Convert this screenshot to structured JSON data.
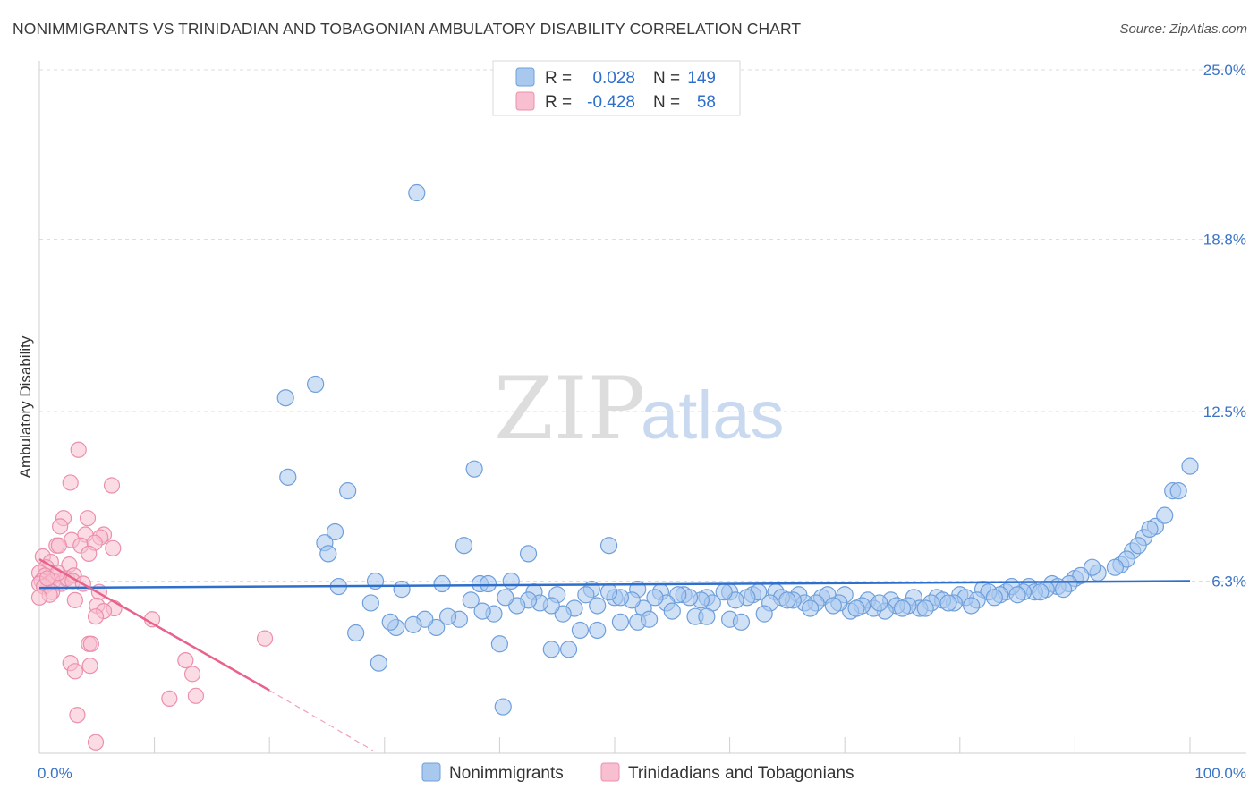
{
  "header": {
    "title": "NONIMMIGRANTS VS TRINIDADIAN AND TOBAGONIAN AMBULATORY DISABILITY CORRELATION CHART",
    "source": "Source: ZipAtlas.com"
  },
  "watermark": {
    "part1": "ZIP",
    "part2": "atlas"
  },
  "colors": {
    "blue_fill": "#a9c8ee",
    "blue_stroke": "#6e9fdc",
    "blue_line": "#2f6fcc",
    "pink_fill": "#f7bfd0",
    "pink_stroke": "#ec8fac",
    "pink_line": "#e8628b",
    "tick_text": "#3b74c6",
    "grid": "#dedede"
  },
  "legend_top": {
    "rows": [
      {
        "r_label": "R =",
        "r_value": "0.028",
        "n_label": "N =",
        "n_value": "149",
        "color": "blue"
      },
      {
        "r_label": "R =",
        "r_value": "-0.428",
        "n_label": "N =",
        "n_value": "58",
        "color": "pink"
      }
    ]
  },
  "legend_bottom": {
    "items": [
      {
        "label": "Nonimmigrants",
        "color": "blue"
      },
      {
        "label": "Trinidadians and Tobagonians",
        "color": "pink"
      }
    ]
  },
  "chart_data": {
    "type": "scatter",
    "title": "NONIMMIGRANTS VS TRINIDADIAN AND TOBAGONIAN AMBULATORY DISABILITY CORRELATION CHART",
    "xlabel": "",
    "ylabel": "Ambulatory Disability",
    "xlim": [
      0,
      100
    ],
    "ylim": [
      0,
      25
    ],
    "x_ticks": [
      0,
      10,
      20,
      30,
      40,
      50,
      60,
      70,
      80,
      90,
      100
    ],
    "x_tick_labels": {
      "0": "0.0%",
      "100": "100.0%"
    },
    "y_ticks": [
      6.3,
      12.5,
      18.8,
      25.0
    ],
    "y_tick_labels": [
      "6.3%",
      "12.5%",
      "18.8%",
      "25.0%"
    ],
    "grid": true,
    "legend_position": "top-center",
    "series": [
      {
        "name": "Nonimmigrants",
        "color": "blue",
        "trend": {
          "x": [
            0,
            100
          ],
          "y": [
            6.05,
            6.3
          ]
        },
        "points": [
          [
            32.8,
            20.5
          ],
          [
            21.4,
            13.0
          ],
          [
            24.0,
            13.5
          ],
          [
            21.6,
            10.1
          ],
          [
            37.8,
            10.4
          ],
          [
            26.8,
            9.6
          ],
          [
            25.7,
            8.1
          ],
          [
            24.8,
            7.7
          ],
          [
            25.1,
            7.3
          ],
          [
            36.9,
            7.6
          ],
          [
            42.5,
            7.3
          ],
          [
            49.5,
            7.6
          ],
          [
            26.0,
            6.1
          ],
          [
            29.2,
            6.3
          ],
          [
            31.5,
            6.0
          ],
          [
            35.0,
            6.2
          ],
          [
            38.3,
            6.2
          ],
          [
            39.0,
            6.2
          ],
          [
            41.0,
            6.3
          ],
          [
            43.0,
            5.9
          ],
          [
            45.0,
            5.8
          ],
          [
            48.0,
            6.0
          ],
          [
            50.0,
            5.7
          ],
          [
            52.0,
            6.0
          ],
          [
            54.0,
            5.9
          ],
          [
            56.0,
            5.8
          ],
          [
            58.0,
            5.7
          ],
          [
            60.0,
            5.9
          ],
          [
            62.0,
            5.8
          ],
          [
            64.0,
            5.9
          ],
          [
            66.0,
            5.8
          ],
          [
            68.0,
            5.7
          ],
          [
            70.0,
            5.8
          ],
          [
            72.0,
            5.6
          ],
          [
            74.0,
            5.6
          ],
          [
            76.0,
            5.7
          ],
          [
            78.0,
            5.7
          ],
          [
            80.0,
            5.8
          ],
          [
            82.0,
            6.0
          ],
          [
            84.0,
            5.9
          ],
          [
            86.0,
            6.1
          ],
          [
            88.0,
            6.2
          ],
          [
            90.0,
            6.4
          ],
          [
            92.0,
            6.6
          ],
          [
            94.0,
            6.9
          ],
          [
            95.0,
            7.4
          ],
          [
            96.0,
            7.9
          ],
          [
            97.0,
            8.3
          ],
          [
            98.5,
            9.6
          ],
          [
            100.0,
            10.5
          ],
          [
            99.0,
            9.6
          ],
          [
            97.8,
            8.7
          ],
          [
            96.5,
            8.2
          ],
          [
            95.5,
            7.6
          ],
          [
            94.5,
            7.1
          ],
          [
            93.5,
            6.8
          ],
          [
            91.5,
            6.8
          ],
          [
            90.5,
            6.5
          ],
          [
            89.5,
            6.2
          ],
          [
            88.5,
            6.1
          ],
          [
            87.5,
            6.0
          ],
          [
            86.5,
            5.9
          ],
          [
            85.5,
            5.9
          ],
          [
            84.5,
            6.1
          ],
          [
            83.5,
            5.8
          ],
          [
            82.5,
            5.9
          ],
          [
            81.5,
            5.6
          ],
          [
            80.5,
            5.7
          ],
          [
            79.5,
            5.5
          ],
          [
            78.5,
            5.6
          ],
          [
            77.5,
            5.5
          ],
          [
            76.5,
            5.3
          ],
          [
            75.5,
            5.4
          ],
          [
            74.5,
            5.4
          ],
          [
            73.5,
            5.2
          ],
          [
            72.5,
            5.3
          ],
          [
            71.5,
            5.4
          ],
          [
            70.5,
            5.2
          ],
          [
            69.5,
            5.5
          ],
          [
            68.5,
            5.8
          ],
          [
            67.5,
            5.5
          ],
          [
            66.5,
            5.5
          ],
          [
            65.5,
            5.6
          ],
          [
            64.5,
            5.7
          ],
          [
            63.5,
            5.5
          ],
          [
            62.5,
            5.9
          ],
          [
            61.5,
            5.7
          ],
          [
            60.5,
            5.6
          ],
          [
            59.5,
            5.9
          ],
          [
            58.5,
            5.5
          ],
          [
            57.5,
            5.6
          ],
          [
            56.5,
            5.7
          ],
          [
            55.5,
            5.8
          ],
          [
            54.5,
            5.5
          ],
          [
            53.5,
            5.7
          ],
          [
            52.5,
            5.3
          ],
          [
            51.5,
            5.6
          ],
          [
            50.5,
            5.7
          ],
          [
            49.5,
            5.9
          ],
          [
            48.5,
            5.4
          ],
          [
            47.5,
            5.8
          ],
          [
            46.5,
            5.3
          ],
          [
            45.5,
            5.1
          ],
          [
            44.5,
            5.4
          ],
          [
            43.5,
            5.5
          ],
          [
            42.5,
            5.6
          ],
          [
            41.5,
            5.4
          ],
          [
            40.5,
            5.7
          ],
          [
            39.5,
            5.1
          ],
          [
            38.5,
            5.2
          ],
          [
            37.5,
            5.6
          ],
          [
            36.5,
            4.9
          ],
          [
            35.5,
            5.0
          ],
          [
            34.5,
            4.6
          ],
          [
            33.5,
            4.9
          ],
          [
            32.5,
            4.7
          ],
          [
            31.0,
            4.6
          ],
          [
            30.5,
            4.8
          ],
          [
            28.8,
            5.5
          ],
          [
            27.5,
            4.4
          ],
          [
            29.5,
            3.3
          ],
          [
            40.3,
            1.7
          ],
          [
            40.0,
            4.0
          ],
          [
            44.5,
            3.8
          ],
          [
            46.0,
            3.8
          ],
          [
            47.0,
            4.5
          ],
          [
            48.5,
            4.5
          ],
          [
            50.5,
            4.8
          ],
          [
            52.0,
            4.8
          ],
          [
            53.0,
            4.9
          ],
          [
            55.0,
            5.2
          ],
          [
            57.0,
            5.0
          ],
          [
            58.0,
            5.0
          ],
          [
            60.0,
            4.9
          ],
          [
            61.0,
            4.8
          ],
          [
            63.0,
            5.1
          ],
          [
            65.0,
            5.6
          ],
          [
            67.0,
            5.3
          ],
          [
            69.0,
            5.4
          ],
          [
            71.0,
            5.3
          ],
          [
            73.0,
            5.5
          ],
          [
            75.0,
            5.3
          ],
          [
            77.0,
            5.3
          ],
          [
            79.0,
            5.5
          ],
          [
            81.0,
            5.4
          ],
          [
            83.0,
            5.7
          ],
          [
            85.0,
            5.8
          ],
          [
            87.0,
            5.9
          ],
          [
            89.0,
            6.0
          ]
        ]
      },
      {
        "name": "Trinidadians and Tobagonians",
        "color": "pink",
        "trend": {
          "x": [
            0,
            20
          ],
          "y": [
            7.1,
            2.3
          ]
        },
        "trend_dashed": {
          "x": [
            20,
            29
          ],
          "y": [
            2.3,
            0.1
          ]
        },
        "points": [
          [
            3.4,
            11.1
          ],
          [
            2.7,
            9.9
          ],
          [
            6.3,
            9.8
          ],
          [
            2.1,
            8.6
          ],
          [
            4.2,
            8.6
          ],
          [
            1.8,
            8.3
          ],
          [
            5.6,
            8.0
          ],
          [
            5.3,
            7.9
          ],
          [
            2.8,
            7.8
          ],
          [
            4.0,
            8.0
          ],
          [
            1.5,
            7.6
          ],
          [
            3.6,
            7.6
          ],
          [
            4.8,
            7.7
          ],
          [
            6.4,
            7.5
          ],
          [
            1.7,
            7.6
          ],
          [
            0.3,
            7.2
          ],
          [
            1.0,
            7.0
          ],
          [
            0.6,
            6.8
          ],
          [
            0.0,
            6.6
          ],
          [
            4.3,
            7.3
          ],
          [
            2.6,
            6.9
          ],
          [
            1.4,
            6.5
          ],
          [
            2.2,
            6.4
          ],
          [
            0.5,
            6.5
          ],
          [
            0.2,
            6.3
          ],
          [
            0.8,
            6.2
          ],
          [
            1.2,
            6.3
          ],
          [
            1.9,
            6.2
          ],
          [
            2.4,
            6.4
          ],
          [
            3.0,
            6.5
          ],
          [
            0.0,
            6.2
          ],
          [
            0.4,
            6.1
          ],
          [
            1.1,
            5.9
          ],
          [
            3.1,
            5.6
          ],
          [
            5.2,
            5.9
          ],
          [
            0.9,
            5.8
          ],
          [
            0.0,
            5.7
          ],
          [
            5.0,
            5.4
          ],
          [
            6.5,
            5.3
          ],
          [
            5.6,
            5.2
          ],
          [
            4.9,
            5.0
          ],
          [
            9.8,
            4.9
          ],
          [
            19.6,
            4.2
          ],
          [
            4.3,
            4.0
          ],
          [
            4.5,
            4.0
          ],
          [
            12.7,
            3.4
          ],
          [
            2.7,
            3.3
          ],
          [
            4.4,
            3.2
          ],
          [
            3.1,
            3.0
          ],
          [
            13.3,
            2.9
          ],
          [
            11.3,
            2.0
          ],
          [
            13.6,
            2.1
          ],
          [
            3.3,
            1.4
          ],
          [
            4.9,
            0.4
          ],
          [
            1.6,
            6.6
          ],
          [
            2.9,
            6.3
          ],
          [
            0.7,
            6.4
          ],
          [
            3.8,
            6.2
          ]
        ]
      }
    ]
  }
}
